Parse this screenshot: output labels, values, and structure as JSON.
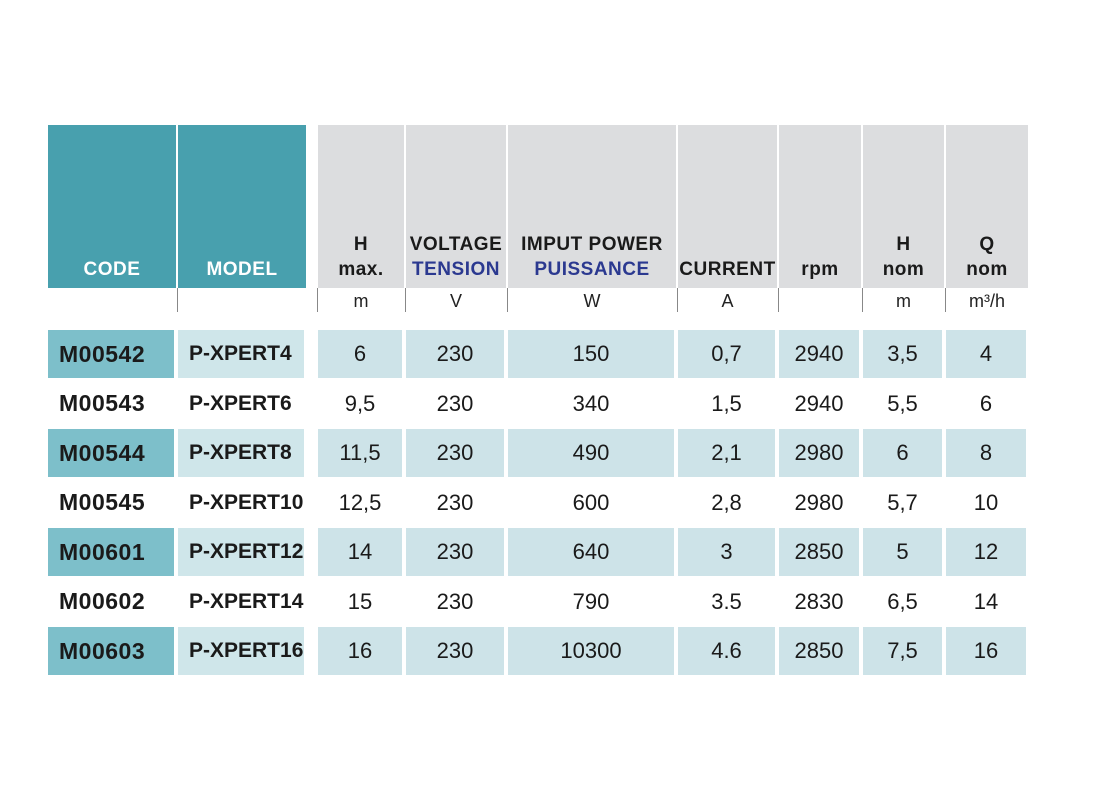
{
  "table": {
    "columns": [
      {
        "lines": [
          {
            "text": "CODE"
          }
        ]
      },
      {
        "lines": [
          {
            "text": "MODEL"
          }
        ]
      },
      {
        "lines": [
          {
            "text": "H"
          },
          {
            "text": "max."
          }
        ],
        "unit": "m"
      },
      {
        "lines": [
          {
            "text": "VOLTAGE"
          },
          {
            "text": "TENSION",
            "color": "#2b3990"
          }
        ],
        "unit": "V"
      },
      {
        "lines": [
          {
            "text": "IMPUT POWER"
          },
          {
            "text": "PUISSANCE",
            "color": "#2b3990"
          }
        ],
        "unit": "W"
      },
      {
        "lines": [
          {
            "text": "CURRENT"
          }
        ],
        "unit": "A"
      },
      {
        "lines": [
          {
            "text": "rpm"
          }
        ]
      },
      {
        "lines": [
          {
            "text": "H"
          },
          {
            "text": "nom"
          }
        ],
        "unit": "m"
      },
      {
        "lines": [
          {
            "text": "Q"
          },
          {
            "text": "nom"
          }
        ],
        "unit": "m³/h"
      }
    ],
    "rows": [
      [
        "M00542",
        "P-XPERT4",
        "6",
        "230",
        "150",
        "0,7",
        "2940",
        "3,5",
        "4"
      ],
      [
        "M00543",
        "P-XPERT6",
        "9,5",
        "230",
        "340",
        "1,5",
        "2940",
        "5,5",
        "6"
      ],
      [
        "M00544",
        "P-XPERT8",
        "11,5",
        "230",
        "490",
        "2,1",
        "2980",
        "6",
        "8"
      ],
      [
        "M00545",
        "P-XPERT10",
        "12,5",
        "230",
        "600",
        "2,8",
        "2980",
        "5,7",
        "10"
      ],
      [
        "M00601",
        "P-XPERT12",
        "14",
        "230",
        "640",
        "3",
        "2850",
        "5",
        "12"
      ],
      [
        "M00602",
        "P-XPERT14",
        "15",
        "230",
        "790",
        "3.5",
        "2830",
        "6,5",
        "14"
      ],
      [
        "M00603",
        "P-XPERT16",
        "16",
        "230",
        "10300",
        "4.6",
        "2850",
        "7,5",
        "16"
      ]
    ],
    "stripe_colors": {
      "code": "#7dbfca",
      "model": "#cfe6ea",
      "data": "#cde3e8"
    }
  }
}
